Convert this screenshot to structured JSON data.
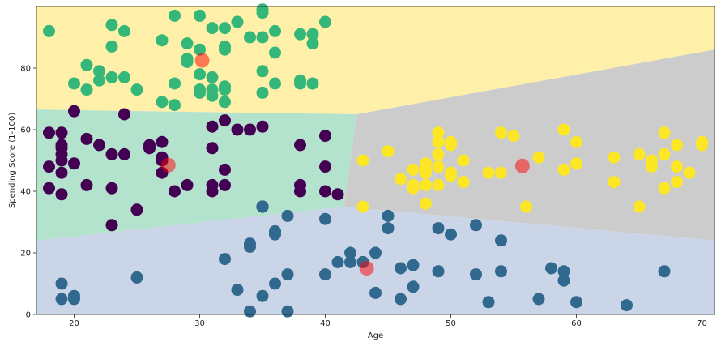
{
  "chart_data": {
    "type": "scatter",
    "title": "",
    "xlabel": "Age",
    "ylabel": "Spending Score (1-100)",
    "xlim": [
      17,
      71
    ],
    "ylim": [
      0,
      100
    ],
    "x_ticks": [
      20,
      30,
      40,
      50,
      60,
      70
    ],
    "y_ticks": [
      0,
      20,
      40,
      60,
      80
    ],
    "grid": false,
    "legend": "none",
    "regions": [
      {
        "cluster": "top",
        "color": "#fef0a8",
        "polygon": [
          [
            17,
            100
          ],
          [
            71,
            100
          ],
          [
            71,
            86
          ],
          [
            42.5,
            65
          ],
          [
            17,
            66.5
          ]
        ]
      },
      {
        "cluster": "left-middle",
        "color": "#b3e2cd",
        "polygon": [
          [
            17,
            66.5
          ],
          [
            42.5,
            65
          ],
          [
            41.5,
            35
          ],
          [
            17,
            24
          ]
        ]
      },
      {
        "cluster": "right-middle",
        "color": "#cccccc",
        "polygon": [
          [
            42.5,
            65
          ],
          [
            71,
            86
          ],
          [
            71,
            24
          ],
          [
            41.5,
            35
          ]
        ]
      },
      {
        "cluster": "bottom",
        "color": "#cbd5e8",
        "polygon": [
          [
            17,
            24
          ],
          [
            41.5,
            35
          ],
          [
            71,
            24
          ],
          [
            71,
            0
          ],
          [
            17,
            0
          ]
        ]
      }
    ],
    "series": [
      {
        "color": "#440154",
        "points": [
          [
            18,
            59
          ],
          [
            18,
            48
          ],
          [
            18,
            41
          ],
          [
            19,
            59
          ],
          [
            19,
            55
          ],
          [
            19,
            54
          ],
          [
            19,
            52
          ],
          [
            19,
            50
          ],
          [
            19,
            46
          ],
          [
            19,
            39
          ],
          [
            20,
            66
          ],
          [
            20,
            49
          ],
          [
            21,
            57
          ],
          [
            21,
            42
          ],
          [
            22,
            55
          ],
          [
            23,
            52
          ],
          [
            23,
            41
          ],
          [
            23,
            29
          ],
          [
            24,
            65
          ],
          [
            24,
            52
          ],
          [
            25,
            34
          ],
          [
            26,
            55
          ],
          [
            26,
            54
          ],
          [
            27,
            56
          ],
          [
            27,
            51
          ],
          [
            27,
            50
          ],
          [
            27,
            46
          ],
          [
            28,
            40
          ],
          [
            29,
            42
          ],
          [
            31,
            61
          ],
          [
            31,
            54
          ],
          [
            31,
            42
          ],
          [
            31,
            40
          ],
          [
            32,
            63
          ],
          [
            32,
            47
          ],
          [
            32,
            42
          ],
          [
            33,
            60
          ],
          [
            34,
            60
          ],
          [
            35,
            61
          ],
          [
            35,
            35
          ],
          [
            35,
            35
          ],
          [
            38,
            55
          ],
          [
            38,
            42
          ],
          [
            38,
            40
          ],
          [
            40,
            58
          ],
          [
            40,
            48
          ],
          [
            40,
            40
          ],
          [
            41,
            39
          ]
        ]
      },
      {
        "color": "#35b779",
        "points": [
          [
            18,
            92
          ],
          [
            20,
            75
          ],
          [
            21,
            81
          ],
          [
            21,
            73
          ],
          [
            22,
            79
          ],
          [
            22,
            76
          ],
          [
            23,
            94
          ],
          [
            23,
            87
          ],
          [
            23,
            77
          ],
          [
            24,
            92
          ],
          [
            24,
            77
          ],
          [
            25,
            73
          ],
          [
            27,
            89
          ],
          [
            27,
            69
          ],
          [
            28,
            97
          ],
          [
            28,
            75
          ],
          [
            28,
            68
          ],
          [
            29,
            88
          ],
          [
            29,
            83
          ],
          [
            29,
            82
          ],
          [
            30,
            97
          ],
          [
            30,
            86
          ],
          [
            30,
            78
          ],
          [
            30,
            73
          ],
          [
            30,
            72
          ],
          [
            31,
            93
          ],
          [
            31,
            77
          ],
          [
            31,
            73
          ],
          [
            31,
            71
          ],
          [
            32,
            93
          ],
          [
            32,
            87
          ],
          [
            32,
            86
          ],
          [
            32,
            74
          ],
          [
            32,
            73
          ],
          [
            32,
            69
          ],
          [
            33,
            95
          ],
          [
            34,
            90
          ],
          [
            35,
            99
          ],
          [
            35,
            98
          ],
          [
            35,
            90
          ],
          [
            35,
            79
          ],
          [
            35,
            72
          ],
          [
            36,
            92
          ],
          [
            36,
            85
          ],
          [
            36,
            75
          ],
          [
            38,
            91
          ],
          [
            38,
            76
          ],
          [
            38,
            75
          ],
          [
            39,
            91
          ],
          [
            39,
            88
          ],
          [
            39,
            75
          ],
          [
            40,
            95
          ]
        ]
      },
      {
        "color": "#31688e",
        "points": [
          [
            19,
            10
          ],
          [
            19,
            5
          ],
          [
            20,
            6
          ],
          [
            20,
            5
          ],
          [
            25,
            12
          ],
          [
            32,
            18
          ],
          [
            33,
            8
          ],
          [
            34,
            23
          ],
          [
            34,
            22
          ],
          [
            34,
            1
          ],
          [
            35,
            6
          ],
          [
            35,
            35
          ],
          [
            36,
            27
          ],
          [
            36,
            26
          ],
          [
            36,
            10
          ],
          [
            37,
            32
          ],
          [
            37,
            13
          ],
          [
            37,
            1
          ],
          [
            40,
            31
          ],
          [
            40,
            13
          ],
          [
            41,
            17
          ],
          [
            42,
            20
          ],
          [
            42,
            17
          ],
          [
            43,
            17
          ],
          [
            44,
            20
          ],
          [
            44,
            7
          ],
          [
            45,
            32
          ],
          [
            45,
            28
          ],
          [
            46,
            15
          ],
          [
            46,
            5
          ],
          [
            47,
            16
          ],
          [
            47,
            9
          ],
          [
            49,
            28
          ],
          [
            49,
            14
          ],
          [
            50,
            26
          ],
          [
            52,
            29
          ],
          [
            52,
            13
          ],
          [
            53,
            4
          ],
          [
            54,
            24
          ],
          [
            54,
            14
          ],
          [
            57,
            5
          ],
          [
            58,
            15
          ],
          [
            59,
            14
          ],
          [
            59,
            11
          ],
          [
            60,
            4
          ],
          [
            64,
            3
          ],
          [
            67,
            14
          ]
        ]
      },
      {
        "color": "#fde725",
        "points": [
          [
            43,
            50
          ],
          [
            43,
            35
          ],
          [
            45,
            53
          ],
          [
            46,
            44
          ],
          [
            47,
            47
          ],
          [
            47,
            42
          ],
          [
            47,
            41
          ],
          [
            48,
            49
          ],
          [
            48,
            47
          ],
          [
            48,
            46
          ],
          [
            48,
            42
          ],
          [
            48,
            36
          ],
          [
            49,
            59
          ],
          [
            49,
            56
          ],
          [
            49,
            52
          ],
          [
            49,
            48
          ],
          [
            49,
            42
          ],
          [
            50,
            56
          ],
          [
            50,
            55
          ],
          [
            50,
            46
          ],
          [
            50,
            45
          ],
          [
            51,
            50
          ],
          [
            51,
            43
          ],
          [
            53,
            46
          ],
          [
            54,
            59
          ],
          [
            54,
            46
          ],
          [
            55,
            58
          ],
          [
            56,
            35
          ],
          [
            57,
            51
          ],
          [
            59,
            60
          ],
          [
            59,
            47
          ],
          [
            60,
            56
          ],
          [
            60,
            49
          ],
          [
            63,
            51
          ],
          [
            63,
            43
          ],
          [
            65,
            52
          ],
          [
            65,
            35
          ],
          [
            66,
            50
          ],
          [
            66,
            48
          ],
          [
            67,
            59
          ],
          [
            67,
            52
          ],
          [
            67,
            41
          ],
          [
            68,
            55
          ],
          [
            68,
            48
          ],
          [
            68,
            43
          ],
          [
            69,
            46
          ],
          [
            70,
            56
          ],
          [
            70,
            55
          ]
        ]
      }
    ],
    "centroids": {
      "color": "#ff0000",
      "points": [
        [
          27.5,
          48.5
        ],
        [
          30.2,
          82.5
        ],
        [
          43.3,
          15.0
        ],
        [
          55.7,
          48.2
        ]
      ]
    }
  }
}
